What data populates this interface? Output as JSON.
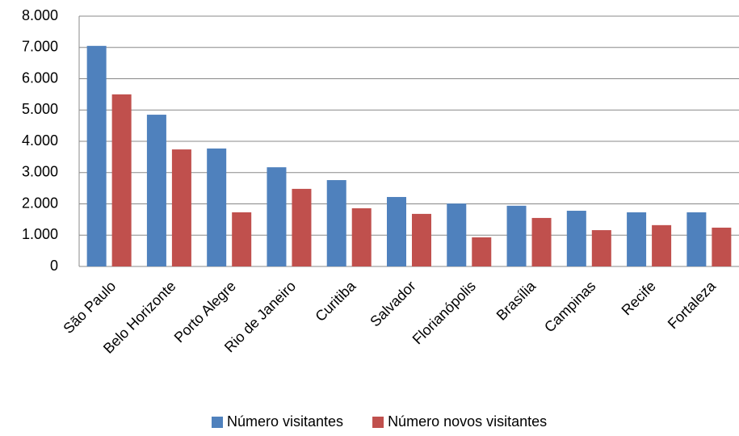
{
  "chart_data": {
    "type": "bar",
    "categories": [
      "São Paulo",
      "Belo Horizonte",
      "Porto Alegre",
      "Rio de Janeiro",
      "Curitiba",
      "Salvador",
      "Florianópolis",
      "Brasília",
      "Campinas",
      "Recife",
      "Fortaleza"
    ],
    "series": [
      {
        "name": "Número visitantes",
        "color": "#4f81bd",
        "values": [
          7050,
          4850,
          3770,
          3170,
          2760,
          2220,
          2010,
          1940,
          1780,
          1730,
          1730
        ]
      },
      {
        "name": "Número novos visitantes",
        "color": "#c0504d",
        "values": [
          5500,
          3740,
          1730,
          2480,
          1860,
          1680,
          930,
          1550,
          1160,
          1320,
          1240
        ]
      }
    ],
    "ylim": [
      0,
      8000
    ],
    "yticks": [
      0,
      {
        "value": 1000,
        "label": "1.000"
      },
      {
        "value": 2000,
        "label": "2.000"
      },
      {
        "value": 3000,
        "label": "3.000"
      },
      {
        "value": 4000,
        "label": "4.000"
      },
      {
        "value": 5000,
        "label": "5.000"
      },
      {
        "value": 6000,
        "label": "6.000"
      },
      {
        "value": 7000,
        "label": "7.000"
      },
      {
        "value": 8000,
        "label": "8.000"
      }
    ],
    "grid": true,
    "legend": "bottom"
  }
}
